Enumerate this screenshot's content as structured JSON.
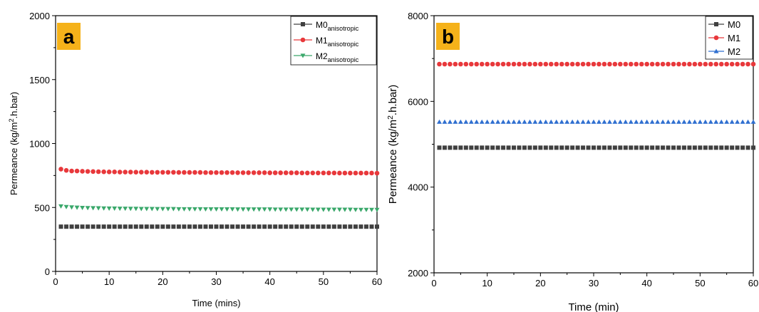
{
  "chart_data": [
    {
      "panel": "a",
      "type": "scatter",
      "title": "",
      "panel_label": "a",
      "xlabel": "Time (mins)",
      "ylabel_main": "Permeance (kg/m",
      "ylabel_sup": "2",
      "ylabel_rest": ".h.bar)",
      "xlim": [
        0,
        60
      ],
      "ylim": [
        0,
        2000
      ],
      "xticks": [
        0,
        10,
        20,
        30,
        40,
        50,
        60
      ],
      "yticks": [
        0,
        500,
        1000,
        1500,
        2000
      ],
      "x": [
        1,
        2,
        3,
        4,
        5,
        6,
        7,
        8,
        9,
        10,
        11,
        12,
        13,
        14,
        15,
        16,
        17,
        18,
        19,
        20,
        21,
        22,
        23,
        24,
        25,
        26,
        27,
        28,
        29,
        30,
        31,
        32,
        33,
        34,
        35,
        36,
        37,
        38,
        39,
        40,
        41,
        42,
        43,
        44,
        45,
        46,
        47,
        48,
        49,
        50,
        51,
        52,
        53,
        54,
        55,
        56,
        57,
        58,
        59,
        60
      ],
      "legend_position": "top-right",
      "series": [
        {
          "name_main": "M0",
          "name_sub": "anisotropic",
          "color": "#404040",
          "marker": "square",
          "values": [
            350,
            350,
            350,
            350,
            350,
            350,
            350,
            350,
            350,
            350,
            350,
            350,
            350,
            350,
            350,
            350,
            350,
            350,
            350,
            350,
            350,
            350,
            350,
            350,
            350,
            350,
            350,
            350,
            350,
            350,
            350,
            350,
            350,
            350,
            350,
            350,
            350,
            350,
            350,
            350,
            350,
            350,
            350,
            350,
            350,
            350,
            350,
            350,
            350,
            350,
            350,
            350,
            350,
            350,
            350,
            350,
            350,
            350,
            350,
            350
          ]
        },
        {
          "name_main": "M1",
          "name_sub": "anisotropic",
          "color": "#e8383b",
          "marker": "circle",
          "values": [
            800,
            790,
            785,
            785,
            783,
            782,
            781,
            780,
            779,
            778,
            778,
            777,
            777,
            777,
            776,
            776,
            776,
            775,
            775,
            775,
            775,
            775,
            774,
            774,
            774,
            774,
            774,
            773,
            773,
            773,
            773,
            773,
            773,
            772,
            772,
            772,
            772,
            772,
            772,
            771,
            771,
            771,
            771,
            771,
            771,
            770,
            770,
            770,
            770,
            770,
            770,
            770,
            769,
            769,
            769,
            769,
            769,
            769,
            769,
            768
          ]
        },
        {
          "name_main": "M2",
          "name_sub": "anisotropic",
          "color": "#3aa86b",
          "marker": "triangle-down",
          "values": [
            510,
            505,
            502,
            500,
            498,
            497,
            496,
            495,
            494,
            493,
            493,
            492,
            492,
            491,
            491,
            490,
            490,
            490,
            489,
            489,
            489,
            489,
            488,
            488,
            488,
            488,
            488,
            487,
            487,
            487,
            487,
            487,
            487,
            486,
            486,
            486,
            486,
            486,
            486,
            486,
            485,
            485,
            485,
            485,
            485,
            485,
            485,
            484,
            484,
            484,
            484,
            484,
            484,
            484,
            484,
            483,
            483,
            483,
            483,
            483
          ]
        }
      ]
    },
    {
      "panel": "b",
      "type": "scatter",
      "title": "",
      "panel_label": "b",
      "xlabel": "Time (min)",
      "ylabel_main": "Permeance (kg/m",
      "ylabel_sup": "2",
      "ylabel_rest": ".h.bar)",
      "xlim": [
        0,
        60
      ],
      "ylim": [
        2000,
        8000
      ],
      "xticks": [
        0,
        10,
        20,
        30,
        40,
        50,
        60
      ],
      "yticks": [
        2000,
        4000,
        6000,
        8000
      ],
      "x": [
        1,
        2,
        3,
        4,
        5,
        6,
        7,
        8,
        9,
        10,
        11,
        12,
        13,
        14,
        15,
        16,
        17,
        18,
        19,
        20,
        21,
        22,
        23,
        24,
        25,
        26,
        27,
        28,
        29,
        30,
        31,
        32,
        33,
        34,
        35,
        36,
        37,
        38,
        39,
        40,
        41,
        42,
        43,
        44,
        45,
        46,
        47,
        48,
        49,
        50,
        51,
        52,
        53,
        54,
        55,
        56,
        57,
        58,
        59,
        60
      ],
      "legend_position": "top-right",
      "series": [
        {
          "name_main": "M0",
          "name_sub": "",
          "color": "#404040",
          "marker": "square",
          "values": [
            4920,
            4920,
            4920,
            4920,
            4920,
            4920,
            4920,
            4920,
            4920,
            4920,
            4920,
            4920,
            4920,
            4920,
            4920,
            4920,
            4920,
            4920,
            4920,
            4920,
            4920,
            4920,
            4920,
            4920,
            4920,
            4920,
            4920,
            4920,
            4920,
            4920,
            4920,
            4920,
            4920,
            4920,
            4920,
            4920,
            4920,
            4920,
            4920,
            4920,
            4920,
            4920,
            4920,
            4920,
            4920,
            4920,
            4920,
            4920,
            4920,
            4920,
            4920,
            4920,
            4920,
            4920,
            4920,
            4920,
            4920,
            4920,
            4920,
            4920
          ]
        },
        {
          "name_main": "M1",
          "name_sub": "",
          "color": "#e8383b",
          "marker": "circle",
          "values": [
            6870,
            6870,
            6870,
            6870,
            6870,
            6870,
            6870,
            6870,
            6870,
            6870,
            6870,
            6870,
            6870,
            6870,
            6870,
            6870,
            6870,
            6870,
            6870,
            6870,
            6870,
            6870,
            6870,
            6870,
            6870,
            6870,
            6870,
            6870,
            6870,
            6870,
            6870,
            6870,
            6870,
            6870,
            6870,
            6870,
            6870,
            6870,
            6870,
            6870,
            6870,
            6870,
            6870,
            6870,
            6870,
            6870,
            6870,
            6870,
            6870,
            6870,
            6870,
            6870,
            6870,
            6870,
            6870,
            6870,
            6870,
            6870,
            6870,
            6870
          ]
        },
        {
          "name_main": "M2",
          "name_sub": "",
          "color": "#2f6fd0",
          "marker": "triangle-up",
          "values": [
            5520,
            5520,
            5520,
            5520,
            5520,
            5520,
            5520,
            5520,
            5520,
            5520,
            5520,
            5520,
            5520,
            5520,
            5520,
            5520,
            5520,
            5520,
            5520,
            5520,
            5520,
            5520,
            5520,
            5520,
            5520,
            5520,
            5520,
            5520,
            5520,
            5520,
            5520,
            5520,
            5520,
            5520,
            5520,
            5520,
            5520,
            5520,
            5520,
            5520,
            5520,
            5520,
            5520,
            5520,
            5520,
            5520,
            5520,
            5520,
            5520,
            5520,
            5520,
            5520,
            5520,
            5520,
            5520,
            5520,
            5520,
            5520,
            5520,
            5520
          ]
        }
      ]
    }
  ],
  "colors": {
    "panel_label_bg": "#f5b21a",
    "axis": "#000000"
  }
}
